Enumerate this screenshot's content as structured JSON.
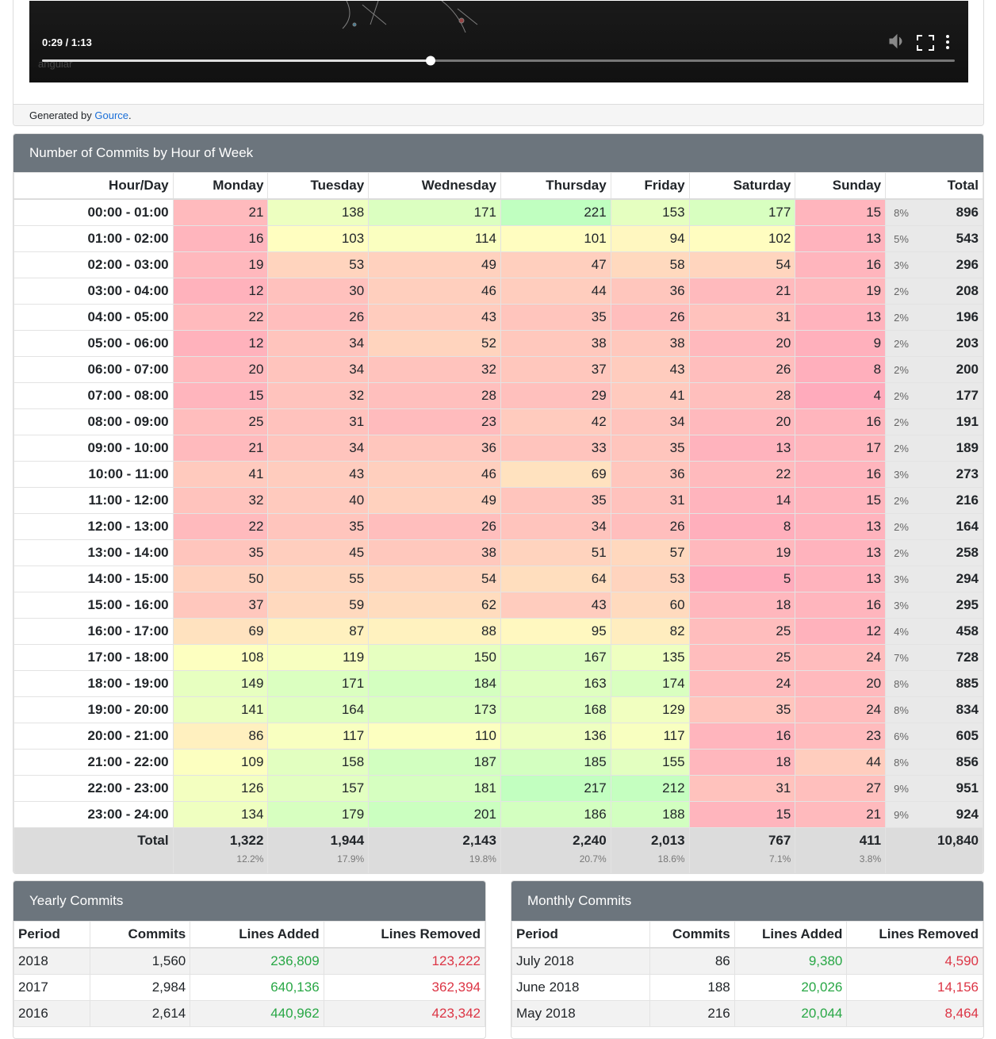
{
  "video": {
    "time": "0:29 / 1:13",
    "watermark": "angular"
  },
  "credit": {
    "prefix": "Generated by",
    "link": "Gource",
    "suffix": "."
  },
  "hourly": {
    "title": "Number of Commits by Hour of Week",
    "headers": [
      "Hour/Day",
      "Monday",
      "Tuesday",
      "Wednesday",
      "Thursday",
      "Friday",
      "Saturday",
      "Sunday",
      "Total"
    ],
    "rows": [
      {
        "hour": "00:00 - 01:00",
        "values": [
          21,
          138,
          171,
          221,
          153,
          177,
          15
        ],
        "percent": "8%",
        "total": 896
      },
      {
        "hour": "01:00 - 02:00",
        "values": [
          16,
          103,
          114,
          101,
          94,
          102,
          13
        ],
        "percent": "5%",
        "total": 543
      },
      {
        "hour": "02:00 - 03:00",
        "values": [
          19,
          53,
          49,
          47,
          58,
          54,
          16
        ],
        "percent": "3%",
        "total": 296
      },
      {
        "hour": "03:00 - 04:00",
        "values": [
          12,
          30,
          46,
          44,
          36,
          21,
          19
        ],
        "percent": "2%",
        "total": 208
      },
      {
        "hour": "04:00 - 05:00",
        "values": [
          22,
          26,
          43,
          35,
          26,
          31,
          13
        ],
        "percent": "2%",
        "total": 196
      },
      {
        "hour": "05:00 - 06:00",
        "values": [
          12,
          34,
          52,
          38,
          38,
          20,
          9
        ],
        "percent": "2%",
        "total": 203
      },
      {
        "hour": "06:00 - 07:00",
        "values": [
          20,
          34,
          32,
          37,
          43,
          26,
          8
        ],
        "percent": "2%",
        "total": 200
      },
      {
        "hour": "07:00 - 08:00",
        "values": [
          15,
          32,
          28,
          29,
          41,
          28,
          4
        ],
        "percent": "2%",
        "total": 177
      },
      {
        "hour": "08:00 - 09:00",
        "values": [
          25,
          31,
          23,
          42,
          34,
          20,
          16
        ],
        "percent": "2%",
        "total": 191
      },
      {
        "hour": "09:00 - 10:00",
        "values": [
          21,
          34,
          36,
          33,
          35,
          13,
          17
        ],
        "percent": "2%",
        "total": 189
      },
      {
        "hour": "10:00 - 11:00",
        "values": [
          41,
          43,
          46,
          69,
          36,
          22,
          16
        ],
        "percent": "3%",
        "total": 273
      },
      {
        "hour": "11:00 - 12:00",
        "values": [
          32,
          40,
          49,
          35,
          31,
          14,
          15
        ],
        "percent": "2%",
        "total": 216
      },
      {
        "hour": "12:00 - 13:00",
        "values": [
          22,
          35,
          26,
          34,
          26,
          8,
          13
        ],
        "percent": "2%",
        "total": 164
      },
      {
        "hour": "13:00 - 14:00",
        "values": [
          35,
          45,
          38,
          51,
          57,
          19,
          13
        ],
        "percent": "2%",
        "total": 258
      },
      {
        "hour": "14:00 - 15:00",
        "values": [
          50,
          55,
          54,
          64,
          53,
          5,
          13
        ],
        "percent": "3%",
        "total": 294
      },
      {
        "hour": "15:00 - 16:00",
        "values": [
          37,
          59,
          62,
          43,
          60,
          18,
          16
        ],
        "percent": "3%",
        "total": 295
      },
      {
        "hour": "16:00 - 17:00",
        "values": [
          69,
          87,
          88,
          95,
          82,
          25,
          12
        ],
        "percent": "4%",
        "total": 458
      },
      {
        "hour": "17:00 - 18:00",
        "values": [
          108,
          119,
          150,
          167,
          135,
          25,
          24
        ],
        "percent": "7%",
        "total": 728
      },
      {
        "hour": "18:00 - 19:00",
        "values": [
          149,
          171,
          184,
          163,
          174,
          24,
          20
        ],
        "percent": "8%",
        "total": 885
      },
      {
        "hour": "19:00 - 20:00",
        "values": [
          141,
          164,
          173,
          168,
          129,
          35,
          24
        ],
        "percent": "8%",
        "total": 834
      },
      {
        "hour": "20:00 - 21:00",
        "values": [
          86,
          117,
          110,
          136,
          117,
          16,
          23
        ],
        "percent": "6%",
        "total": 605
      },
      {
        "hour": "21:00 - 22:00",
        "values": [
          109,
          158,
          187,
          185,
          155,
          18,
          44
        ],
        "percent": "8%",
        "total": 856
      },
      {
        "hour": "22:00 - 23:00",
        "values": [
          126,
          157,
          181,
          217,
          212,
          31,
          27
        ],
        "percent": "9%",
        "total": 951
      },
      {
        "hour": "23:00 - 24:00",
        "values": [
          134,
          179,
          201,
          186,
          188,
          15,
          21
        ],
        "percent": "9%",
        "total": 924
      }
    ],
    "total": {
      "label": "Total",
      "values": [
        "1,322",
        "1,944",
        "2,143",
        "2,240",
        "2,013",
        "767",
        "411"
      ],
      "percents": [
        "12.2%",
        "17.9%",
        "19.8%",
        "20.7%",
        "18.6%",
        "7.1%",
        "3.8%"
      ],
      "grand": "10,840"
    }
  },
  "yearly": {
    "title": "Yearly Commits",
    "headers": [
      "Period",
      "Commits",
      "Lines Added",
      "Lines Removed"
    ],
    "rows": [
      [
        "2018",
        "1,560",
        "236,809",
        "123,222"
      ],
      [
        "2017",
        "2,984",
        "640,136",
        "362,394"
      ],
      [
        "2016",
        "2,614",
        "440,962",
        "423,342"
      ]
    ]
  },
  "monthly": {
    "title": "Monthly Commits",
    "headers": [
      "Period",
      "Commits",
      "Lines Added",
      "Lines Removed"
    ],
    "rows": [
      [
        "July 2018",
        "86",
        "9,380",
        "4,590"
      ],
      [
        "June 2018",
        "188",
        "20,026",
        "14,156"
      ],
      [
        "May 2018",
        "216",
        "20,044",
        "8,464"
      ]
    ]
  }
}
